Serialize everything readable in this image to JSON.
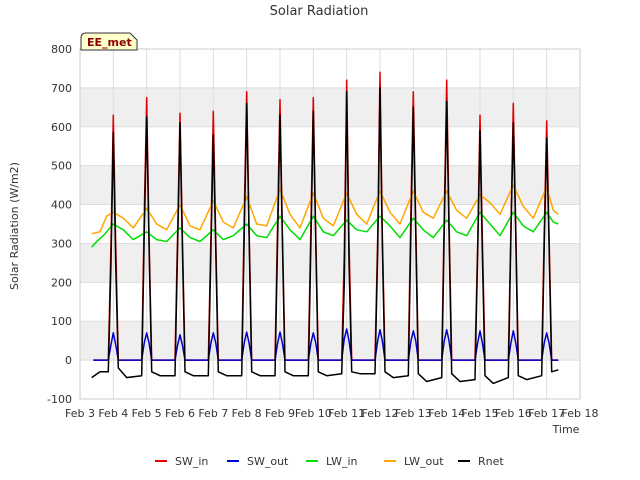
{
  "chart_data": {
    "type": "line",
    "title": "Solar Radiation",
    "xlabel": "Time",
    "ylabel": "Solar Radiation (W/m2)",
    "badge": "EE_met",
    "ylim": [
      -100,
      800
    ],
    "yticks": [
      -100,
      0,
      100,
      200,
      300,
      400,
      500,
      600,
      700,
      800
    ],
    "xlim": [
      3,
      18
    ],
    "xticks": [
      {
        "v": 3,
        "label": "Feb 3"
      },
      {
        "v": 4,
        "label": "Feb 4"
      },
      {
        "v": 5,
        "label": "Feb 5"
      },
      {
        "v": 6,
        "label": "Feb 6"
      },
      {
        "v": 7,
        "label": "Feb 7"
      },
      {
        "v": 8,
        "label": "Feb 8"
      },
      {
        "v": 9,
        "label": "Feb 9"
      },
      {
        "v": 10,
        "label": "Feb 10"
      },
      {
        "v": 11,
        "label": "Feb 11"
      },
      {
        "v": 12,
        "label": "Feb 12"
      },
      {
        "v": 13,
        "label": "Feb 13"
      },
      {
        "v": 14,
        "label": "Feb 14"
      },
      {
        "v": 15,
        "label": "Feb 15"
      },
      {
        "v": 16,
        "label": "Feb 16"
      },
      {
        "v": 17,
        "label": "Feb 17"
      },
      {
        "v": 18,
        "label": "Feb 18"
      }
    ],
    "x_unit": "day of February (fractional)",
    "grid": true,
    "legend_position": "bottom",
    "series": [
      {
        "name": "SW_in",
        "color": "#e00000",
        "x": [
          3.4,
          3.85,
          3.93,
          4.0,
          4.07,
          4.15,
          4.85,
          4.93,
          5.0,
          5.07,
          5.15,
          5.85,
          5.93,
          6.0,
          6.07,
          6.15,
          6.85,
          6.93,
          7.0,
          7.07,
          7.15,
          7.85,
          7.93,
          8.0,
          8.07,
          8.15,
          8.85,
          8.93,
          9.0,
          9.07,
          9.15,
          9.85,
          9.93,
          10.0,
          10.07,
          10.15,
          10.85,
          10.93,
          11.0,
          11.07,
          11.15,
          11.85,
          11.93,
          12.0,
          12.07,
          12.15,
          12.85,
          12.93,
          13.0,
          13.07,
          13.15,
          13.85,
          13.93,
          14.0,
          14.07,
          14.15,
          14.85,
          14.93,
          15.0,
          15.07,
          15.15,
          15.85,
          15.93,
          16.0,
          16.07,
          16.15,
          16.85,
          16.93,
          17.0,
          17.07,
          17.15,
          17.35
        ],
        "y": [
          0,
          0,
          300,
          630,
          300,
          0,
          0,
          380,
          675,
          320,
          0,
          0,
          340,
          635,
          330,
          0,
          0,
          330,
          640,
          320,
          0,
          0,
          380,
          690,
          350,
          0,
          0,
          370,
          670,
          340,
          0,
          0,
          360,
          675,
          330,
          0,
          0,
          280,
          720,
          310,
          0,
          0,
          320,
          740,
          330,
          0,
          0,
          400,
          690,
          360,
          0,
          0,
          380,
          720,
          370,
          0,
          0,
          300,
          630,
          320,
          0,
          0,
          350,
          660,
          350,
          0,
          0,
          340,
          615,
          330,
          0,
          0
        ]
      },
      {
        "name": "SW_out",
        "color": "#0000cc",
        "x": [
          3.4,
          3.85,
          3.93,
          4.0,
          4.07,
          4.15,
          4.85,
          4.93,
          5.0,
          5.07,
          5.15,
          5.85,
          5.93,
          6.0,
          6.07,
          6.15,
          6.85,
          6.93,
          7.0,
          7.07,
          7.15,
          7.85,
          7.93,
          8.0,
          8.07,
          8.15,
          8.85,
          8.93,
          9.0,
          9.07,
          9.15,
          9.85,
          9.93,
          10.0,
          10.07,
          10.15,
          10.85,
          10.93,
          11.0,
          11.07,
          11.15,
          11.85,
          11.93,
          12.0,
          12.07,
          12.15,
          12.85,
          12.93,
          13.0,
          13.07,
          13.15,
          13.85,
          13.93,
          14.0,
          14.07,
          14.15,
          14.85,
          14.93,
          15.0,
          15.07,
          15.15,
          15.85,
          15.93,
          16.0,
          16.07,
          16.15,
          16.85,
          16.93,
          17.0,
          17.07,
          17.15,
          17.35
        ],
        "y": [
          0,
          0,
          40,
          70,
          40,
          0,
          0,
          45,
          70,
          45,
          0,
          0,
          40,
          65,
          40,
          0,
          0,
          45,
          70,
          45,
          0,
          0,
          45,
          72,
          45,
          0,
          0,
          45,
          72,
          45,
          0,
          0,
          45,
          70,
          45,
          0,
          0,
          55,
          80,
          50,
          0,
          0,
          50,
          78,
          50,
          0,
          0,
          50,
          75,
          50,
          0,
          0,
          50,
          78,
          50,
          0,
          0,
          45,
          75,
          45,
          0,
          0,
          45,
          75,
          45,
          0,
          0,
          45,
          70,
          45,
          0,
          0
        ]
      },
      {
        "name": "LW_in",
        "color": "#00dd00",
        "x": [
          3.35,
          3.5,
          3.7,
          4.0,
          4.3,
          4.6,
          5.0,
          5.3,
          5.6,
          6.0,
          6.3,
          6.6,
          7.0,
          7.3,
          7.6,
          8.0,
          8.3,
          8.6,
          9.0,
          9.3,
          9.6,
          10.0,
          10.3,
          10.6,
          11.0,
          11.3,
          11.6,
          12.0,
          12.3,
          12.6,
          13.0,
          13.3,
          13.6,
          14.0,
          14.3,
          14.6,
          15.0,
          15.3,
          15.6,
          16.0,
          16.3,
          16.6,
          17.0,
          17.2,
          17.35
        ],
        "y": [
          290,
          305,
          320,
          350,
          335,
          310,
          330,
          310,
          305,
          340,
          315,
          305,
          335,
          310,
          320,
          350,
          320,
          315,
          370,
          335,
          310,
          370,
          330,
          320,
          360,
          335,
          330,
          370,
          345,
          315,
          365,
          335,
          315,
          360,
          330,
          320,
          380,
          350,
          320,
          380,
          345,
          330,
          380,
          355,
          350
        ]
      },
      {
        "name": "LW_out",
        "color": "#ffa500",
        "x": [
          3.35,
          3.6,
          3.8,
          4.0,
          4.3,
          4.6,
          5.0,
          5.3,
          5.6,
          6.0,
          6.3,
          6.6,
          7.0,
          7.3,
          7.6,
          8.0,
          8.3,
          8.6,
          9.0,
          9.3,
          9.6,
          10.0,
          10.3,
          10.6,
          11.0,
          11.3,
          11.6,
          12.0,
          12.3,
          12.6,
          13.0,
          13.3,
          13.6,
          14.0,
          14.3,
          14.6,
          15.0,
          15.3,
          15.6,
          16.0,
          16.3,
          16.6,
          17.0,
          17.2,
          17.35
        ],
        "y": [
          325,
          330,
          370,
          380,
          365,
          340,
          390,
          350,
          335,
          400,
          345,
          335,
          410,
          355,
          340,
          420,
          350,
          345,
          440,
          375,
          340,
          430,
          365,
          345,
          430,
          375,
          350,
          435,
          380,
          350,
          435,
          380,
          365,
          435,
          385,
          365,
          425,
          405,
          375,
          450,
          395,
          365,
          445,
          385,
          375
        ]
      },
      {
        "name": "Rnet",
        "color": "#000000",
        "x": [
          3.35,
          3.6,
          3.85,
          3.93,
          4.0,
          4.07,
          4.15,
          4.4,
          4.85,
          4.93,
          5.0,
          5.07,
          5.15,
          5.4,
          5.85,
          5.93,
          6.0,
          6.07,
          6.15,
          6.4,
          6.85,
          6.93,
          7.0,
          7.07,
          7.15,
          7.4,
          7.85,
          7.93,
          8.0,
          8.07,
          8.15,
          8.4,
          8.85,
          8.93,
          9.0,
          9.07,
          9.15,
          9.4,
          9.85,
          9.93,
          10.0,
          10.07,
          10.15,
          10.4,
          10.85,
          10.93,
          11.0,
          11.07,
          11.15,
          11.4,
          11.85,
          11.93,
          12.0,
          12.07,
          12.15,
          12.4,
          12.85,
          12.93,
          13.0,
          13.07,
          13.15,
          13.4,
          13.85,
          13.93,
          14.0,
          14.07,
          14.15,
          14.4,
          14.85,
          14.93,
          15.0,
          15.07,
          15.15,
          15.4,
          15.85,
          15.93,
          16.0,
          16.07,
          16.15,
          16.4,
          16.85,
          16.93,
          17.0,
          17.07,
          17.15,
          17.35
        ],
        "y": [
          -45,
          -30,
          -30,
          250,
          585,
          250,
          -20,
          -45,
          -40,
          330,
          625,
          300,
          -30,
          -40,
          -40,
          300,
          610,
          300,
          -30,
          -40,
          -40,
          290,
          580,
          290,
          -30,
          -40,
          -40,
          330,
          660,
          330,
          -30,
          -40,
          -40,
          320,
          630,
          320,
          -30,
          -40,
          -40,
          310,
          640,
          310,
          -30,
          -40,
          -35,
          200,
          690,
          250,
          -30,
          -35,
          -35,
          280,
          700,
          300,
          -30,
          -45,
          -40,
          340,
          650,
          330,
          -35,
          -55,
          -45,
          340,
          665,
          330,
          -35,
          -55,
          -50,
          280,
          590,
          280,
          -40,
          -60,
          -45,
          330,
          610,
          330,
          -40,
          -50,
          -40,
          300,
          570,
          300,
          -30,
          -25
        ]
      }
    ]
  }
}
